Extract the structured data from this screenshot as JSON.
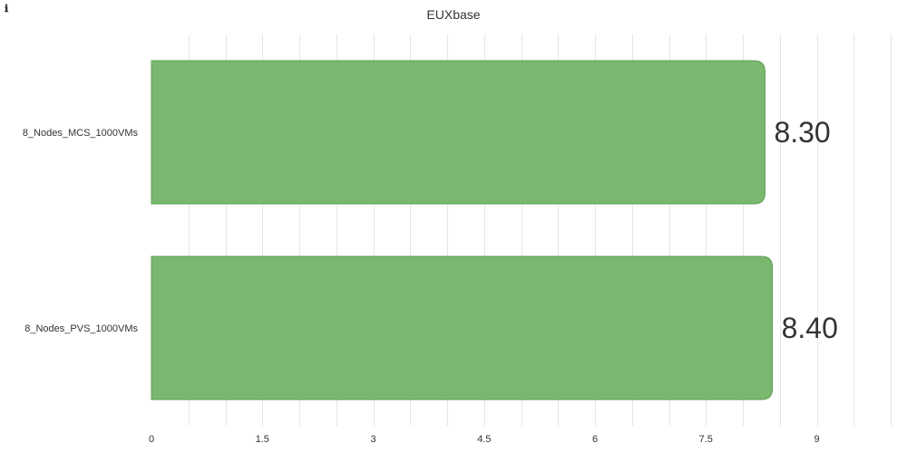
{
  "info_icon": "info-icon",
  "chart_data": {
    "type": "bar",
    "orientation": "horizontal",
    "title": "EUXbase",
    "categories": [
      "8_Nodes_MCS_1000VMs",
      "8_Nodes_PVS_1000VMs"
    ],
    "values": [
      8.3,
      8.4
    ],
    "value_labels": [
      "8.30",
      "8.40"
    ],
    "xticks": [
      "0",
      "1.5",
      "3",
      "4.5",
      "6",
      "7.5",
      "9"
    ],
    "xlim": [
      0,
      10
    ],
    "grid": true,
    "bar_color": "#7ab870",
    "bar_stroke": "#5c9e52"
  }
}
